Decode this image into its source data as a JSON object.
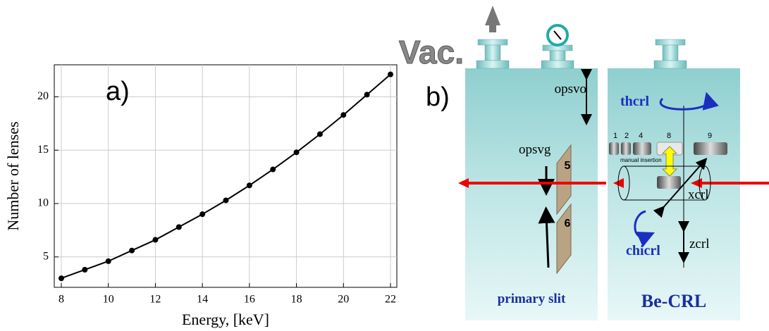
{
  "chart_data": {
    "type": "line",
    "annotation": "a)",
    "x_label": "Energy, [keV]",
    "y_label": "Number of lenses",
    "x": [
      8,
      9,
      10,
      11,
      12,
      13,
      14,
      15,
      16,
      17,
      18,
      19,
      20,
      21,
      22
    ],
    "values": [
      3.0,
      3.8,
      4.6,
      5.6,
      6.6,
      7.8,
      9.0,
      10.3,
      11.7,
      13.2,
      14.8,
      16.5,
      18.3,
      20.2,
      22.1
    ],
    "color": "#000000",
    "xlim": [
      7.7,
      22.27
    ],
    "xticks": [
      8,
      10,
      12,
      14,
      16,
      18,
      20,
      22
    ],
    "ylim": [
      2.15,
      23
    ],
    "yticks": [
      5,
      10,
      15,
      20
    ],
    "grid": true
  },
  "diagram": {
    "label": "b)",
    "vac": "Vac.",
    "opsvo": "opsvo",
    "opsvg": "opsvg",
    "slit_top": "5",
    "slit_bottom": "6",
    "thcrl": "thcrl",
    "lens_groups": [
      "1",
      "2",
      "4",
      "8",
      "9"
    ],
    "manual": "manual insertion",
    "xcrl": "xcrl",
    "chicrl": "chicrl",
    "zcrl": "zcrl",
    "left_panel": "primary slit",
    "right_panel": "Be-CRL"
  }
}
